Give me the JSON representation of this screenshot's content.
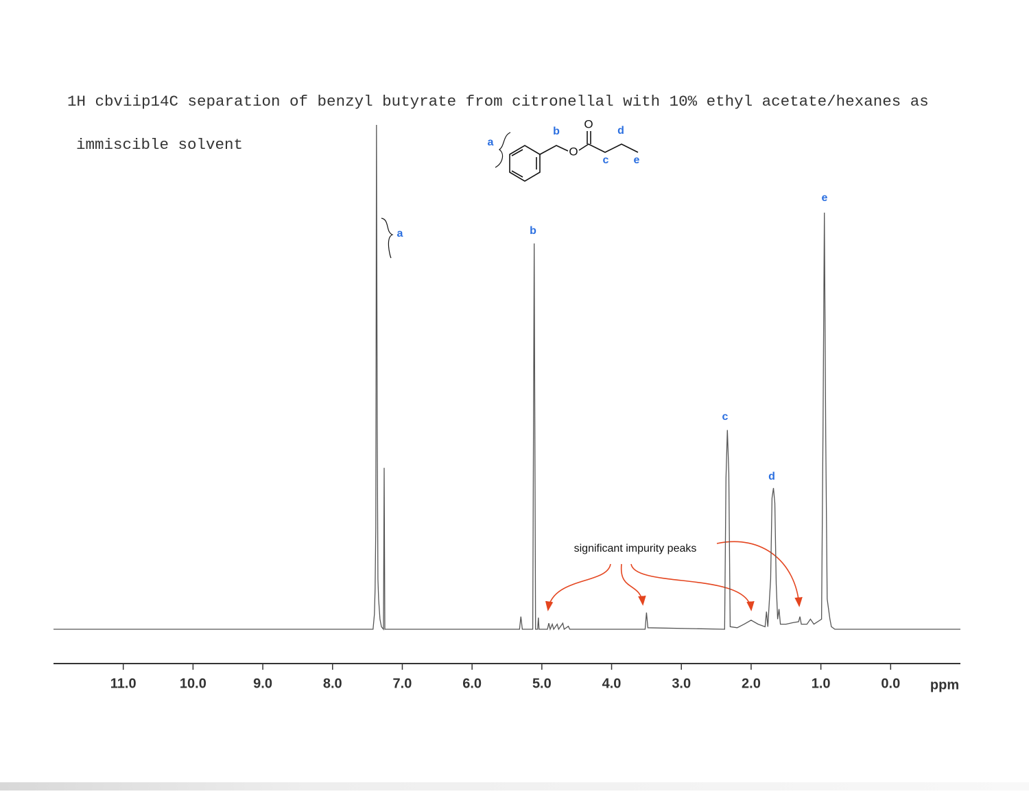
{
  "chart_data": {
    "type": "line",
    "title": [
      "1H cbviip14C separation of benzyl butyrate from citronellal with 10% ethyl acetate/hexanes as",
      "immiscible solvent"
    ],
    "x_label": "ppm",
    "xlim": [
      12.0,
      -1.0
    ],
    "ylim": [
      0,
      100
    ],
    "xticks": [
      {
        "value": 11,
        "label": "11.0"
      },
      {
        "value": 10,
        "label": "10.0"
      },
      {
        "value": 9,
        "label": "9.0"
      },
      {
        "value": 8,
        "label": "8.0"
      },
      {
        "value": 7,
        "label": "7.0"
      },
      {
        "value": 6,
        "label": "6.0"
      },
      {
        "value": 5,
        "label": "5.0"
      },
      {
        "value": 4,
        "label": "4.0"
      },
      {
        "value": 3,
        "label": "3.0"
      },
      {
        "value": 2,
        "label": "2.0"
      },
      {
        "value": 1,
        "label": "1.0"
      },
      {
        "value": 0,
        "label": "0.0"
      }
    ],
    "color": "#555555",
    "x": [
      12.0,
      7.42,
      7.4,
      7.39,
      7.38,
      7.37,
      7.36,
      7.35,
      7.34,
      7.32,
      7.3,
      7.27,
      7.26,
      7.25,
      5.32,
      5.3,
      5.28,
      5.13,
      5.11,
      5.09,
      5.06,
      5.05,
      5.04,
      4.92,
      4.9,
      4.88,
      4.85,
      4.83,
      4.78,
      4.76,
      4.7,
      4.68,
      4.62,
      4.6,
      3.52,
      3.5,
      3.48,
      2.38,
      2.36,
      2.34,
      2.32,
      2.3,
      2.2,
      2.1,
      2.0,
      1.9,
      1.8,
      1.78,
      1.76,
      1.72,
      1.7,
      1.68,
      1.66,
      1.64,
      1.62,
      1.6,
      1.58,
      1.5,
      1.4,
      1.32,
      1.3,
      1.28,
      1.2,
      1.15,
      1.1,
      0.99,
      0.97,
      0.95,
      0.93,
      0.91,
      0.89,
      0.87,
      0.85,
      0.8,
      -1.0
    ],
    "values": [
      0,
      0,
      3,
      8,
      20,
      100,
      40,
      10,
      6,
      2,
      0.5,
      0,
      32,
      0,
      0,
      2.5,
      0,
      0,
      76.5,
      0,
      0,
      2.3,
      0,
      0,
      1.2,
      0,
      1,
      0,
      1,
      0,
      1.2,
      0,
      0.6,
      0,
      0,
      3.3,
      0.3,
      0,
      30,
      39.5,
      31,
      0.5,
      0.3,
      1,
      1.8,
      1,
      0.5,
      3.5,
      0.5,
      10,
      26,
      28,
      25,
      9,
      2,
      4,
      1,
      1,
      1.3,
      1.5,
      2.5,
      1,
      1,
      2,
      1,
      2,
      39,
      82.6,
      38,
      6,
      4,
      2,
      0.5,
      0,
      0
    ],
    "peak_labels": [
      "a",
      "b",
      "c",
      "d",
      "e"
    ],
    "annotation": "significant impurity peaks",
    "structure": {
      "labels": [
        "a",
        "b",
        "d",
        "c",
        "e"
      ],
      "atoms": [
        "O",
        "O"
      ]
    }
  }
}
